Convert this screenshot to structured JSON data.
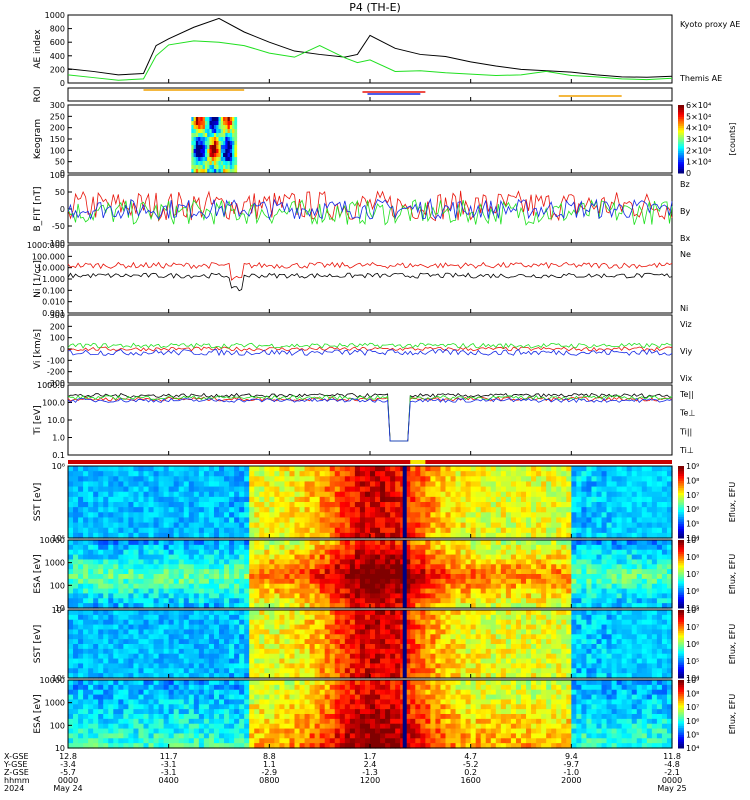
{
  "title": "P4 (TH-E)",
  "colors": {
    "red": "#e8140a",
    "green": "#20e020",
    "blue": "#1428e6",
    "black": "#000000",
    "orange": "#f0a000",
    "yellow": "#f5e600",
    "darkred": "#c80000"
  },
  "chart_data": {
    "type": "multi-panel time series",
    "time_range": [
      "2024-05-24 00:00",
      "2024-05-25 00:00"
    ],
    "panels": [
      {
        "id": "ae",
        "ylabel": "AE index",
        "yticks": [
          "0",
          "200",
          "400",
          "600",
          "800",
          "1000"
        ],
        "ylim": [
          0,
          1000
        ],
        "legend": [
          "Kyoto proxy AE",
          "Themis AE"
        ],
        "series": [
          {
            "name": "Themis AE",
            "x": [
              0,
              1,
              2,
              3,
              3.5,
              4,
              5,
              6,
              7,
              8,
              9,
              10,
              11,
              11.5,
              12,
              13,
              14,
              15,
              16,
              17,
              18,
              19,
              20,
              21,
              22,
              23,
              24
            ],
            "y": [
              210,
              170,
              120,
              140,
              550,
              650,
              820,
              950,
              750,
              600,
              470,
              420,
              380,
              420,
              700,
              510,
              420,
              390,
              310,
              250,
              200,
              180,
              160,
              120,
              90,
              85,
              100
            ]
          },
          {
            "name": "Kyoto proxy AE",
            "x": [
              0,
              1,
              2,
              3,
              3.5,
              4,
              5,
              6,
              7,
              8,
              9,
              10,
              11,
              11.5,
              12,
              13,
              14,
              15,
              16,
              17,
              18,
              19,
              20,
              21,
              22,
              23,
              24
            ],
            "y": [
              120,
              80,
              40,
              60,
              400,
              560,
              620,
              600,
              550,
              440,
              380,
              550,
              370,
              300,
              340,
              170,
              180,
              150,
              130,
              110,
              120,
              170,
              110,
              90,
              60,
              50,
              70
            ]
          }
        ]
      },
      {
        "id": "roi",
        "ylabel": "ROI"
      },
      {
        "id": "keogram",
        "ylabel": "Keogram",
        "yticks": [
          "0",
          "50",
          "100",
          "150",
          "200",
          "250",
          "300"
        ],
        "ylim": [
          0,
          300
        ],
        "colorbar": {
          "label": "[counts]",
          "ticks": [
            "0",
            "1×10⁴",
            "2×10⁴",
            "3×10⁴",
            "4×10⁴",
            "5×10⁴",
            "6×10⁴"
          ]
        }
      },
      {
        "id": "bfield",
        "ylabel": "B_FIT",
        "units": "[nT]",
        "coord": "GSE",
        "yticks": [
          "-100",
          "-50",
          "0",
          "50",
          "100"
        ],
        "ylim": [
          -100,
          100
        ],
        "legend": [
          "Bz",
          "By",
          "Bx"
        ]
      },
      {
        "id": "density",
        "ylabel": "Ni",
        "units": "[1/cc]",
        "yticks": [
          "0.001",
          "0.010",
          "0.100",
          "1.000",
          "10.000",
          "100.000",
          "1000.000"
        ],
        "legend": [
          "Ne",
          "Ni"
        ]
      },
      {
        "id": "velocity",
        "ylabel": "Vi",
        "units": "[km/s]",
        "yticks": [
          "-300",
          "-200",
          "-100",
          "0",
          "100",
          "200",
          "300"
        ],
        "ylim": [
          -300,
          300
        ],
        "legend": [
          "Viz",
          "Viy",
          "Vix"
        ]
      },
      {
        "id": "temp",
        "ylabel": "Ti",
        "units": "[eV]",
        "yticks": [
          "0.1",
          "1.0",
          "10.0",
          "100.0",
          "1000.0"
        ],
        "legend": [
          "Te||",
          "Te⊥",
          "Ti||",
          "Ti⊥"
        ]
      },
      {
        "id": "sst_ion",
        "ylabel": "SST",
        "units": "[eV]",
        "yticks": [
          "10⁵",
          "10⁶"
        ],
        "colorbar": {
          "label": "Eflux, EFU",
          "ticks": [
            "10⁴",
            "10⁵",
            "10⁶",
            "10⁷",
            "10⁸",
            "10⁹"
          ]
        }
      },
      {
        "id": "esa_ion",
        "ylabel": "ESA",
        "units": "[eV]",
        "yticks": [
          "10",
          "100",
          "1000",
          "10000"
        ],
        "colorbar": {
          "label": "Eflux, EFU",
          "ticks": [
            "10⁵",
            "10⁶",
            "10⁷",
            "10⁸",
            "10⁹"
          ]
        }
      },
      {
        "id": "sst_elec",
        "ylabel": "SST",
        "units": "[eV]",
        "yticks": [
          "10⁵",
          "10⁶"
        ],
        "colorbar": {
          "label": "Eflux, EFU",
          "ticks": [
            "10⁴",
            "10⁵",
            "10⁶",
            "10⁷",
            "10⁸"
          ]
        }
      },
      {
        "id": "esa_elec",
        "ylabel": "ESA",
        "units": "[eV]",
        "yticks": [
          "10",
          "100",
          "1000",
          "10000"
        ],
        "colorbar": {
          "label": "Eflux, EFU",
          "ticks": [
            "10⁴",
            "10⁵",
            "10⁶",
            "10⁷",
            "10⁸",
            "10⁹"
          ]
        }
      }
    ],
    "xaxis": {
      "row_labels": [
        "X-GSE",
        "Y-GSE",
        "Z-GSE",
        "hhmm",
        "2024"
      ],
      "columns": [
        {
          "vals": [
            "12.8",
            "-3.4",
            "-5.7",
            "0000",
            "May 24"
          ]
        },
        {
          "vals": [
            "11.7",
            "-3.1",
            "-3.1",
            "0400",
            ""
          ]
        },
        {
          "vals": [
            "8.8",
            "1.1",
            "-2.9",
            "0800",
            ""
          ]
        },
        {
          "vals": [
            "1.7",
            "2.4",
            "-1.3",
            "1200",
            ""
          ]
        },
        {
          "vals": [
            "4.7",
            "-5.2",
            "0.2",
            "1600",
            ""
          ]
        },
        {
          "vals": [
            "9.4",
            "-9.7",
            "-1.0",
            "2000",
            ""
          ]
        },
        {
          "vals": [
            "11.8",
            "-4.8",
            "-2.1",
            "0000",
            "May 25"
          ]
        }
      ]
    }
  }
}
